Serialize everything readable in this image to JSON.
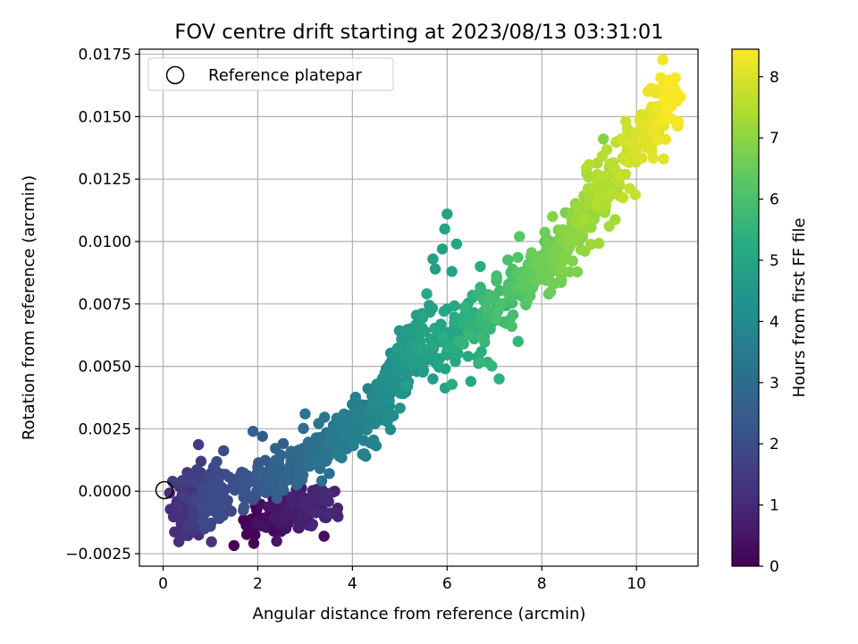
{
  "chart_data": {
    "type": "scatter",
    "title": "FOV centre drift starting at 2023/08/13 03:31:01",
    "xlabel": "Angular distance from reference (arcmin)",
    "ylabel": "Rotation from reference (arcmin)",
    "xlim": [
      -0.5,
      11.3
    ],
    "ylim": [
      -0.003,
      0.0177
    ],
    "x_ticks": [
      0,
      2,
      4,
      6,
      8,
      10
    ],
    "x_tick_labels": [
      "0",
      "2",
      "4",
      "6",
      "8",
      "10"
    ],
    "y_ticks": [
      -0.0025,
      0.0,
      0.0025,
      0.005,
      0.0075,
      0.01,
      0.0125,
      0.015,
      0.0175
    ],
    "y_tick_labels": [
      "−0.0025",
      "0.0000",
      "0.0025",
      "0.0050",
      "0.0075",
      "0.0100",
      "0.0125",
      "0.0150",
      "0.0175"
    ],
    "grid": true,
    "legend": {
      "placement": "upper-left",
      "entries": [
        "Reference platepar"
      ]
    },
    "reference_point": {
      "x": 0,
      "y": 0
    },
    "colorbar": {
      "label": "Hours from first FF file",
      "range": [
        0,
        8.45
      ],
      "ticks": [
        0,
        1,
        2,
        3,
        4,
        5,
        6,
        7,
        8
      ],
      "tick_labels": [
        "0",
        "1",
        "2",
        "3",
        "4",
        "5",
        "6",
        "7",
        "8"
      ],
      "colormap": "viridis"
    },
    "point_clusters": [
      {
        "t0": 0.0,
        "t1": 1.0,
        "x0": 1.8,
        "x1": 3.5,
        "y0": -0.0012,
        "y1": -0.0005,
        "spread_x": 0.25,
        "spread_y": 0.0004,
        "n": 150
      },
      {
        "t0": 1.0,
        "t1": 2.0,
        "x0": 0.4,
        "x1": 1.2,
        "y0": -0.0007,
        "y1": -0.0001,
        "spread_x": 0.15,
        "spread_y": 0.0006,
        "n": 170
      },
      {
        "t0": 2.0,
        "t1": 2.8,
        "x0": 1.6,
        "x1": 2.7,
        "y0": 0.0001,
        "y1": 0.0009,
        "spread_x": 0.12,
        "spread_y": 0.0004,
        "n": 110
      },
      {
        "t0": 2.8,
        "t1": 3.7,
        "x0": 2.7,
        "x1": 4.2,
        "y0": 0.0009,
        "y1": 0.003,
        "spread_x": 0.12,
        "spread_y": 0.0005,
        "n": 150
      },
      {
        "t0": 3.7,
        "t1": 4.6,
        "x0": 4.3,
        "x1": 5.3,
        "y0": 0.0025,
        "y1": 0.0058,
        "spread_x": 0.12,
        "spread_y": 0.0006,
        "n": 130
      },
      {
        "t0": 4.6,
        "t1": 5.6,
        "x0": 5.2,
        "x1": 7.0,
        "y0": 0.0055,
        "y1": 0.007,
        "spread_x": 0.25,
        "spread_y": 0.0008,
        "n": 140
      },
      {
        "t0": 5.6,
        "t1": 6.9,
        "x0": 6.8,
        "x1": 8.6,
        "y0": 0.007,
        "y1": 0.01,
        "spread_x": 0.15,
        "spread_y": 0.0005,
        "n": 200
      },
      {
        "t0": 6.9,
        "t1": 8.45,
        "x0": 8.6,
        "x1": 10.8,
        "y0": 0.01,
        "y1": 0.016,
        "spread_x": 0.15,
        "spread_y": 0.0006,
        "n": 240
      }
    ],
    "outlier_points": [
      {
        "x": 6.0,
        "y": 0.0111,
        "t": 4.9
      },
      {
        "x": 5.95,
        "y": 0.0105,
        "t": 4.9
      },
      {
        "x": 6.2,
        "y": 0.0099,
        "t": 5.0
      },
      {
        "x": 5.9,
        "y": 0.0097,
        "t": 4.8
      },
      {
        "x": 5.7,
        "y": 0.0093,
        "t": 4.8
      },
      {
        "x": 5.75,
        "y": 0.0089,
        "t": 4.7
      },
      {
        "x": 6.1,
        "y": 0.0088,
        "t": 4.9
      },
      {
        "x": 6.7,
        "y": 0.009,
        "t": 5.3
      },
      {
        "x": 3.7,
        "y": 0.0015,
        "t": 3.6
      },
      {
        "x": 4.25,
        "y": 0.0015,
        "t": 3.7
      },
      {
        "x": 0.8,
        "y": 0.0012,
        "t": 1.5
      },
      {
        "x": 0.2,
        "y": 0.0004,
        "t": 1.6
      },
      {
        "x": 1.9,
        "y": 0.0024,
        "t": 2.6
      },
      {
        "x": 2.1,
        "y": 0.0022,
        "t": 2.5
      },
      {
        "x": 3.0,
        "y": 0.0031,
        "t": 3.3
      },
      {
        "x": 7.1,
        "y": 0.0045,
        "t": 5.4
      },
      {
        "x": 6.5,
        "y": 0.0044,
        "t": 5.1
      },
      {
        "x": 7.5,
        "y": 0.006,
        "t": 5.6
      },
      {
        "x": 5.7,
        "y": 0.0045,
        "t": 4.7
      },
      {
        "x": 9.3,
        "y": 0.0141,
        "t": 6.9
      },
      {
        "x": 3.4,
        "y": -0.0018,
        "t": 0.3
      },
      {
        "x": 2.4,
        "y": -0.002,
        "t": 0.5
      }
    ]
  }
}
